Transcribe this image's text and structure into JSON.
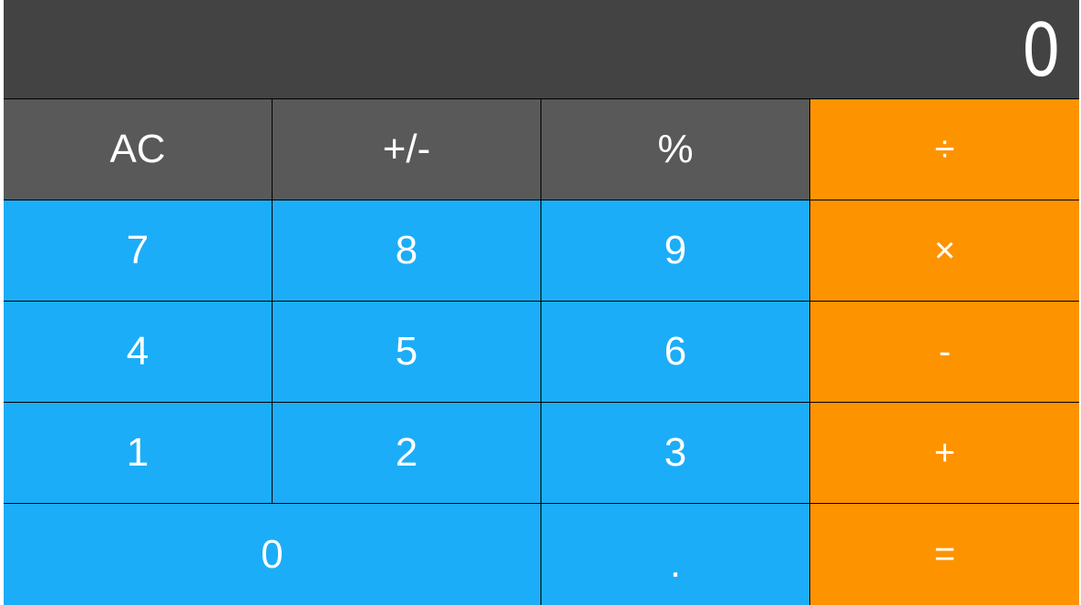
{
  "display": {
    "value": "0"
  },
  "keys": {
    "ac": "AC",
    "sign": "+/-",
    "percent": "%",
    "divide": "÷",
    "seven": "7",
    "eight": "8",
    "nine": "9",
    "multiply": "×",
    "four": "4",
    "five": "5",
    "six": "6",
    "minus": "-",
    "one": "1",
    "two": "2",
    "three": "3",
    "plus": "+",
    "zero": "0",
    "dot": ".",
    "equals": "="
  },
  "colors": {
    "display_bg": "#434343",
    "function_key": "#595959",
    "number_key": "#1cadf8",
    "operator_key": "#fe9300",
    "separator": "#000000",
    "text": "#ffffff"
  }
}
